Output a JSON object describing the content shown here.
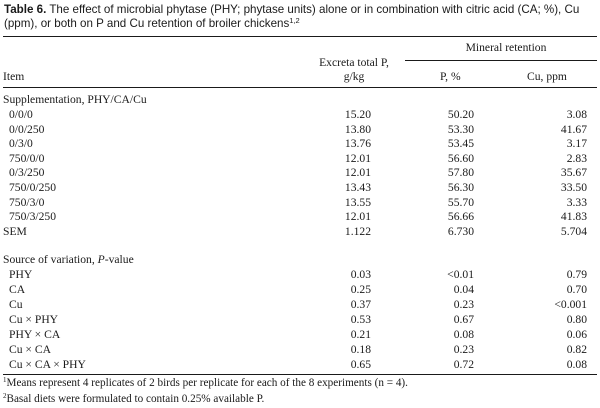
{
  "caption": {
    "label": "Table 6.",
    "text": "The effect of microbial phytase (PHY; phytase units) alone or in combination with citric acid (CA; %), Cu (ppm), or both on P and Cu retention of broiler chickens",
    "footnote_refs": "1,2"
  },
  "headers": {
    "item": "Item",
    "excreta_line1": "Excreta total P,",
    "excreta_line2": "g/kg",
    "mineral_retention": "Mineral retention",
    "p": "P, %",
    "cu": "Cu, ppm"
  },
  "supplementation": {
    "title": "Supplementation, PHY/CA/Cu",
    "rows": [
      {
        "item": "0/0/0",
        "excreta": "15.20",
        "p": "50.20",
        "cu": "3.08"
      },
      {
        "item": "0/0/250",
        "excreta": "13.80",
        "p": "53.30",
        "cu": "41.67"
      },
      {
        "item": "0/3/0",
        "excreta": "13.76",
        "p": "53.45",
        "cu": "3.17"
      },
      {
        "item": "750/0/0",
        "excreta": "12.01",
        "p": "56.60",
        "cu": "2.83"
      },
      {
        "item": "0/3/250",
        "excreta": "12.01",
        "p": "57.80",
        "cu": "35.67"
      },
      {
        "item": "750/0/250",
        "excreta": "13.43",
        "p": "56.30",
        "cu": "33.50"
      },
      {
        "item": "750/3/0",
        "excreta": "13.55",
        "p": "55.70",
        "cu": "3.33"
      },
      {
        "item": "750/3/250",
        "excreta": "12.01",
        "p": "56.66",
        "cu": "41.83"
      }
    ]
  },
  "sem": {
    "item": "SEM",
    "excreta": "1.122",
    "p": "6.730",
    "cu": "5.704"
  },
  "variation": {
    "title_prefix": "Source of variation, ",
    "title_italic": "P",
    "title_suffix": "-value",
    "rows": [
      {
        "item": "PHY",
        "excreta": "0.03",
        "p": "<0.01",
        "cu": "0.79"
      },
      {
        "item": "CA",
        "excreta": "0.25",
        "p": "0.04",
        "cu": "0.70"
      },
      {
        "item": "Cu",
        "excreta": "0.37",
        "p": "0.23",
        "cu": "<0.001"
      },
      {
        "item": "Cu × PHY",
        "excreta": "0.53",
        "p": "0.67",
        "cu": "0.80"
      },
      {
        "item": "PHY × CA",
        "excreta": "0.21",
        "p": "0.08",
        "cu": "0.06"
      },
      {
        "item": "Cu × CA",
        "excreta": "0.18",
        "p": "0.23",
        "cu": "0.82"
      },
      {
        "item": "Cu × CA × PHY",
        "excreta": "0.65",
        "p": "0.72",
        "cu": "0.08"
      }
    ]
  },
  "footnotes": [
    {
      "mark": "1",
      "text": "Means represent 4 replicates of 2 birds per replicate for each of the 8 experiments (n = 4)."
    },
    {
      "mark": "2",
      "text": "Basal diets were formulated to contain 0.25% available P."
    }
  ]
}
